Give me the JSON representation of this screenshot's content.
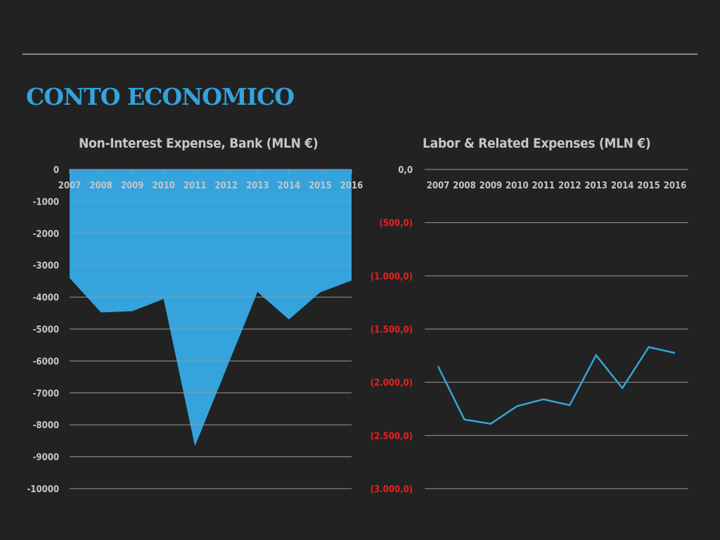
{
  "title": "CONTO ECONOMICO",
  "colors": {
    "background": "#222222",
    "accent": "#35a3dc",
    "axis_text": "#c6c6c6",
    "negative_text": "#e8201e",
    "gridline": "#9a9a9a"
  },
  "chart_data": [
    {
      "type": "area",
      "title": "Non-Interest Expense, Bank (MLN €)",
      "xlabel": "",
      "ylabel": "",
      "categories": [
        "2007",
        "2008",
        "2009",
        "2010",
        "2011",
        "2012",
        "2013",
        "2014",
        "2015",
        "2016"
      ],
      "series": [
        {
          "values": [
            -3400,
            -4480,
            -4440,
            -4060,
            -8670,
            -6250,
            -3840,
            -4700,
            -3850,
            -3480
          ]
        }
      ],
      "ylim": [
        -10000,
        0
      ],
      "yticks": [
        "0",
        "-1000",
        "-2000",
        "-3000",
        "-4000",
        "-5000",
        "-6000",
        "-7000",
        "-8000",
        "-9000",
        "-10000"
      ],
      "grid": true,
      "legend": "none"
    },
    {
      "type": "line",
      "title": "Labor & Related Expenses (MLN €)",
      "xlabel": "",
      "ylabel": "",
      "categories": [
        "2007",
        "2008",
        "2009",
        "2010",
        "2011",
        "2012",
        "2013",
        "2014",
        "2015",
        "2016"
      ],
      "series": [
        {
          "values": [
            -1850,
            -2350,
            -2390,
            -2225,
            -2160,
            -2215,
            -1745,
            -2055,
            -1670,
            -1725
          ]
        }
      ],
      "ylim": [
        -3000,
        0
      ],
      "yticks": [
        "0,0",
        "(500,0)",
        "(1.000,0)",
        "(1.500,0)",
        "(2.000,0)",
        "(2.500,0)",
        "(3.000,0)"
      ],
      "grid": true,
      "legend": "none"
    }
  ]
}
